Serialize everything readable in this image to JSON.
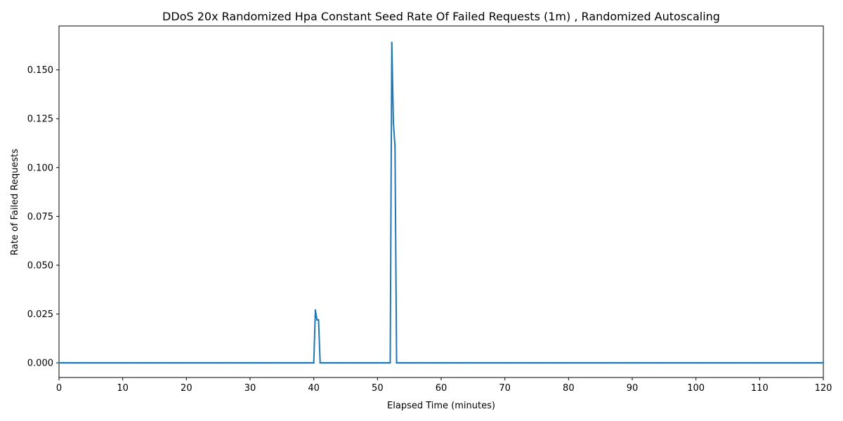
{
  "chart_data": {
    "type": "line",
    "title": "DDoS 20x Randomized Hpa Constant Seed Rate Of Failed Requests (1m) , Randomized Autoscaling",
    "xlabel": "Elapsed Time (minutes)",
    "ylabel": "Rate of Failed Requests",
    "xlim": [
      0,
      120
    ],
    "ylim": [
      -0.0075,
      0.1725
    ],
    "x_ticks": [
      0,
      10,
      20,
      30,
      40,
      50,
      60,
      70,
      80,
      90,
      100,
      110,
      120
    ],
    "y_ticks": [
      0.0,
      0.025,
      0.05,
      0.075,
      0.1,
      0.125,
      0.15
    ],
    "y_tick_labels": [
      "0.000",
      "0.025",
      "0.050",
      "0.075",
      "0.100",
      "0.125",
      "0.150"
    ],
    "grid": false,
    "colors": {
      "series": "#1f77b4"
    },
    "series": [
      {
        "name": "",
        "x": [
          0,
          40.0,
          40.25,
          40.5,
          40.75,
          41.0,
          52.0,
          52.25,
          52.5,
          52.75,
          53.0,
          120
        ],
        "y": [
          0,
          0,
          0.027,
          0.022,
          0.022,
          0,
          0,
          0.164,
          0.123,
          0.111,
          0,
          0
        ]
      }
    ]
  }
}
